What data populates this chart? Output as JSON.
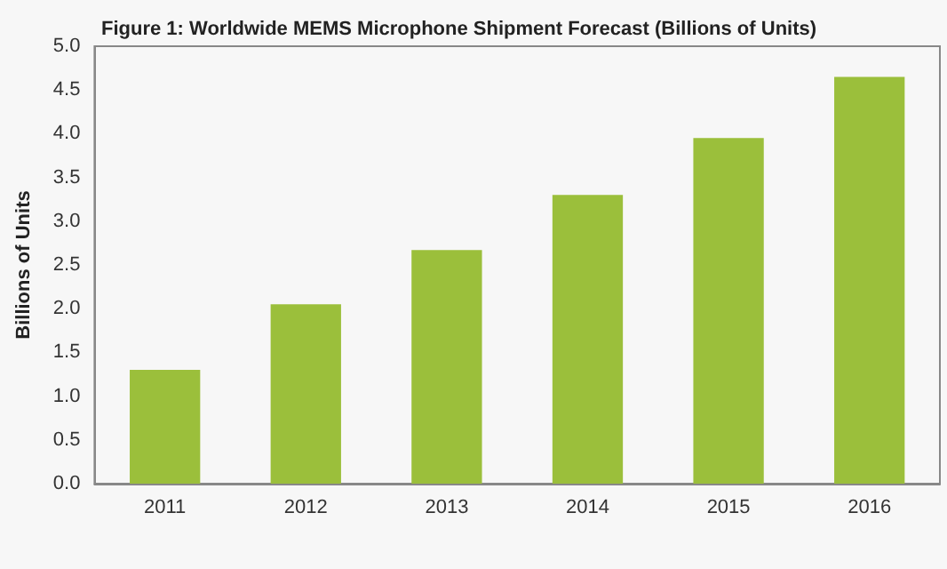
{
  "chart_data": {
    "type": "bar",
    "title": "Figure 1: Worldwide MEMS Microphone Shipment Forecast (Billions of Units)",
    "ylabel": "Billions of Units",
    "categories": [
      "2011",
      "2012",
      "2013",
      "2014",
      "2015",
      "2016"
    ],
    "values": [
      1.3,
      2.05,
      2.67,
      3.3,
      3.95,
      4.65
    ],
    "color": "#9bbf3b",
    "ylim": [
      0,
      5
    ],
    "yticks": [
      {
        "value": 0,
        "label": "0.0"
      },
      0.5,
      {
        "value": 1,
        "label": "1.0"
      },
      1.5,
      {
        "value": 2,
        "label": "2.0"
      },
      2.5,
      {
        "value": 3,
        "label": "3.0"
      },
      3.5,
      {
        "value": 4,
        "label": "4.0"
      },
      4.5,
      {
        "value": 5,
        "label": "5.0"
      }
    ],
    "grid": false
  }
}
